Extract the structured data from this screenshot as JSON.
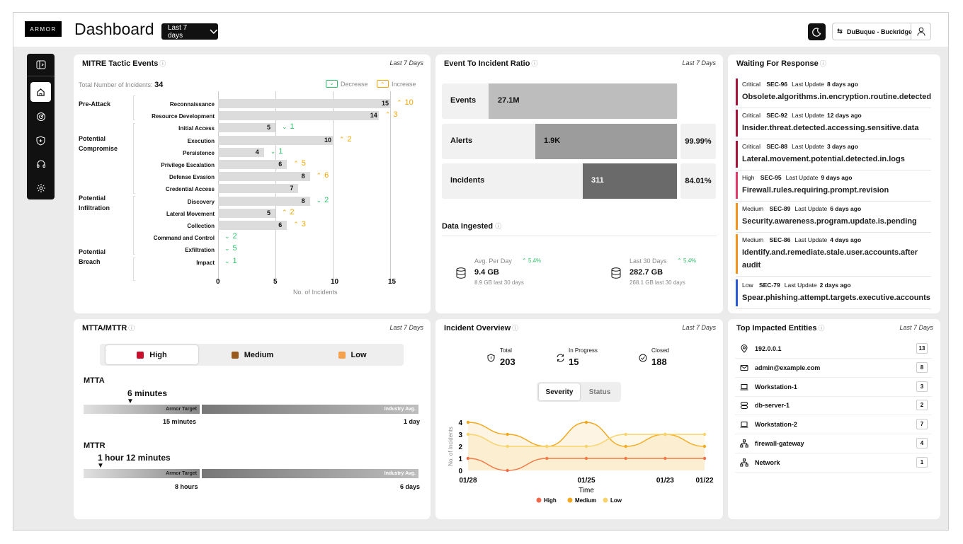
{
  "header": {
    "logo": "ARMOR",
    "title": "Dashboard",
    "range": "Last 7 days",
    "tenant": "DuBuque - Buckridge"
  },
  "sidebar": {
    "items": [
      "collapse-icon",
      "home-icon",
      "radar-icon",
      "shield-icon",
      "headset-icon",
      "gear-icon"
    ]
  },
  "mitre": {
    "title": "MITRE Tactic Events",
    "range": "Last 7 Days",
    "total_label": "Total Number of Incidents:",
    "total": "34",
    "decrease": "Decrease",
    "increase": "Increase",
    "xlabel": "No. of Incidents",
    "groups": [
      "Pre-Attack",
      "Potential Compromise",
      "Potential Infiltration",
      "Potential Breach"
    ],
    "ticks": [
      "0",
      "5",
      "10",
      "15"
    ],
    "events": [
      {
        "name": "Reconnaissance",
        "value": 15,
        "change": "10",
        "dir": "up"
      },
      {
        "name": "Resource Development",
        "value": 14,
        "change": "3",
        "dir": "up"
      },
      {
        "name": "Initial Access",
        "value": 5,
        "change": "1",
        "dir": "down"
      },
      {
        "name": "Execution",
        "value": 10,
        "change": "2",
        "dir": "up"
      },
      {
        "name": "Persistence",
        "value": 4,
        "change": "1",
        "dir": "down"
      },
      {
        "name": "Privilege Escalation",
        "value": 6,
        "change": "5",
        "dir": "up"
      },
      {
        "name": "Defense Evasion",
        "value": 8,
        "change": "6",
        "dir": "up"
      },
      {
        "name": "Credential Access",
        "value": 7,
        "change": "",
        "dir": ""
      },
      {
        "name": "Discovery",
        "value": 8,
        "change": "2",
        "dir": "down"
      },
      {
        "name": "Lateral Movement",
        "value": 5,
        "change": "2",
        "dir": "up"
      },
      {
        "name": "Collection",
        "value": 6,
        "change": "3",
        "dir": "up"
      },
      {
        "name": "Command and  Control",
        "value": 0,
        "change": "2",
        "dir": "down"
      },
      {
        "name": "Exfiltration",
        "value": 0,
        "change": "5",
        "dir": "down"
      },
      {
        "name": "Impact",
        "value": 0,
        "change": "1",
        "dir": "down"
      }
    ]
  },
  "ratio": {
    "title": "Event To Incident Ratio",
    "range": "Last 7 Days",
    "rows": [
      {
        "label": "Events",
        "value": "27.1M",
        "pct": ""
      },
      {
        "label": "Alerts",
        "value": "1.9K",
        "pct": "99.99%"
      },
      {
        "label": "Incidents",
        "value": "311",
        "pct": "84.01%"
      }
    ],
    "ingested": {
      "title": "Data Ingested",
      "avg_label": "Avg. Per Day",
      "avg_value": "9.4 GB",
      "avg_sub": "8.9 GB last 30 days",
      "avg_chg": "5.4%",
      "last_label": "Last 30 Days",
      "last_value": "282.7 GB",
      "last_sub": "268.1 GB last 30 days",
      "last_chg": "5.4%"
    }
  },
  "waiting": {
    "title": "Waiting For Response",
    "update_label": "Last Update",
    "items": [
      {
        "sev": "Critical",
        "id": "SEC-96",
        "ago": "8 days ago",
        "text": "Obsolete.algorithms.in.encryption.routine.detected",
        "color": "#a3153a"
      },
      {
        "sev": "Critical",
        "id": "SEC-92",
        "ago": "12 days ago",
        "text": "Insider.threat.detected.accessing.sensitive.data",
        "color": "#a3153a"
      },
      {
        "sev": "Critical",
        "id": "SEC-88",
        "ago": "3 days ago",
        "text": "Lateral.movement.potential.detected.in.logs",
        "color": "#a3153a"
      },
      {
        "sev": "High",
        "id": "SEC-95",
        "ago": "9 days ago",
        "text": "Firewall.rules.requiring.prompt.revision",
        "color": "#e03a6a"
      },
      {
        "sev": "Medium",
        "id": "SEC-89",
        "ago": "6 days ago",
        "text": "Security.awareness.program.update.is.pending",
        "color": "#f2931c"
      },
      {
        "sev": "Medium",
        "id": "SEC-86",
        "ago": "4 days ago",
        "text": "Identify.and.remediate.stale.user.accounts.after audit",
        "color": "#f2931c"
      },
      {
        "sev": "Low",
        "id": "SEC-79",
        "ago": "2 days ago",
        "text": "Spear.phishing.attempt.targets.executive.accounts",
        "color": "#2a59d6"
      }
    ]
  },
  "mtta": {
    "title": "MTTA/MTTR",
    "range": "Last 7 Days",
    "tabs": [
      {
        "label": "High",
        "color": "#c8102e"
      },
      {
        "label": "Medium",
        "color": "#9a5a1c"
      },
      {
        "label": "Low",
        "color": "#f5a04a"
      }
    ],
    "mtta_label": "MTTA",
    "mtta_value": "6 minutes",
    "mtta_target": "15 minutes",
    "mtta_industry": "1 day",
    "mttr_label": "MTTR",
    "mttr_value": "1 hour 12 minutes",
    "mttr_target": "8 hours",
    "mttr_industry": "6 days",
    "target_label": "Armor Target",
    "industry_label": "Industry Avg."
  },
  "overview": {
    "title": "Incident Overview",
    "range": "Last 7 Days",
    "total_label": "Total",
    "total": "203",
    "progress_label": "In Progress",
    "progress": "15",
    "closed_label": "Closed",
    "closed": "188",
    "tab1": "Severity",
    "tab2": "Status"
  },
  "chart_data": {
    "type": "line",
    "x": [
      "01/28",
      "",
      "",
      "01/25",
      "",
      "01/23",
      "01/22"
    ],
    "xticks": [
      "01/28",
      "01/25",
      "01/23",
      "01/22"
    ],
    "xlabel": "Time",
    "ylabel": "No. of Incidents",
    "ylim": [
      0,
      4
    ],
    "yticks": [
      "0",
      "1",
      "2",
      "3",
      "4"
    ],
    "series": [
      {
        "name": "High",
        "color": "#f0664a",
        "values": [
          1,
          0,
          1,
          1,
          1,
          1,
          1
        ]
      },
      {
        "name": "Medium",
        "color": "#f2a81c",
        "values": [
          4,
          3,
          2,
          4,
          2,
          3,
          2
        ]
      },
      {
        "name": "Low",
        "color": "#f7d36b",
        "values": [
          3,
          2,
          2,
          2,
          3,
          3,
          3
        ]
      }
    ]
  },
  "entities": {
    "title": "Top Impacted Entities",
    "range": "Last 7 Days",
    "items": [
      {
        "name": "192.0.0.1",
        "count": "13",
        "icon": "location-icon"
      },
      {
        "name": "admin@example.com",
        "count": "8",
        "icon": "mail-icon"
      },
      {
        "name": "Workstation-1",
        "count": "3",
        "icon": "laptop-icon"
      },
      {
        "name": "db-server-1",
        "count": "2",
        "icon": "database-icon"
      },
      {
        "name": "Workstation-2",
        "count": "7",
        "icon": "laptop-icon"
      },
      {
        "name": "firewall-gateway",
        "count": "4",
        "icon": "network-icon"
      },
      {
        "name": "Network",
        "count": "1",
        "icon": "network-icon"
      }
    ]
  }
}
